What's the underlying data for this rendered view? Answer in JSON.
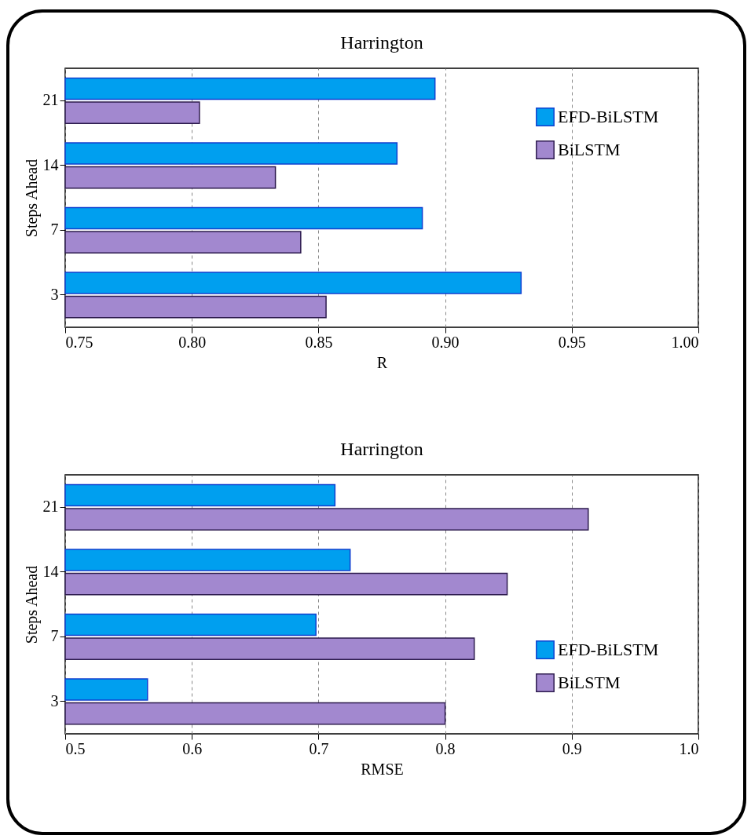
{
  "chart_data": [
    {
      "type": "bar",
      "title": "Harrington",
      "orientation": "horizontal",
      "xlabel": "R",
      "ylabel": "Steps Ahead",
      "categories": [
        "21",
        "14",
        "7",
        "3"
      ],
      "series": [
        {
          "name": "EFD-BiLSTM",
          "color": "#009fef",
          "values": [
            0.896,
            0.881,
            0.891,
            0.93
          ]
        },
        {
          "name": "BiLSTM",
          "color": "#a288cf",
          "values": [
            0.803,
            0.833,
            0.843,
            0.853
          ]
        }
      ],
      "xlim": [
        0.75,
        1.0
      ],
      "xticks": [
        {
          "value": 0.75,
          "label": "0.75"
        },
        {
          "value": 0.8,
          "label": "0.80"
        },
        {
          "value": 0.85,
          "label": "0.85"
        },
        {
          "value": 0.9,
          "label": "0.90"
        },
        {
          "value": 0.95,
          "label": "0.95"
        },
        {
          "value": 1.0,
          "label": "1.00"
        }
      ],
      "grid": "x",
      "legend": "top right"
    },
    {
      "type": "bar",
      "title": "Harrington",
      "orientation": "horizontal",
      "xlabel": "RMSE",
      "ylabel": "Steps Ahead",
      "categories": [
        "21",
        "14",
        "7",
        "3"
      ],
      "series": [
        {
          "name": "EFD-BiLSTM",
          "color": "#009fef",
          "values": [
            0.713,
            0.725,
            0.698,
            0.565
          ]
        },
        {
          "name": "BiLSTM",
          "color": "#a288cf",
          "values": [
            0.913,
            0.849,
            0.823,
            0.8
          ]
        }
      ],
      "xlim": [
        0.5,
        1.0
      ],
      "xticks": [
        0.5,
        0.6,
        0.7,
        0.8,
        0.9,
        {
          "value": 1.0,
          "label": "1.0"
        }
      ],
      "grid": "x",
      "legend": "bottom right"
    }
  ]
}
